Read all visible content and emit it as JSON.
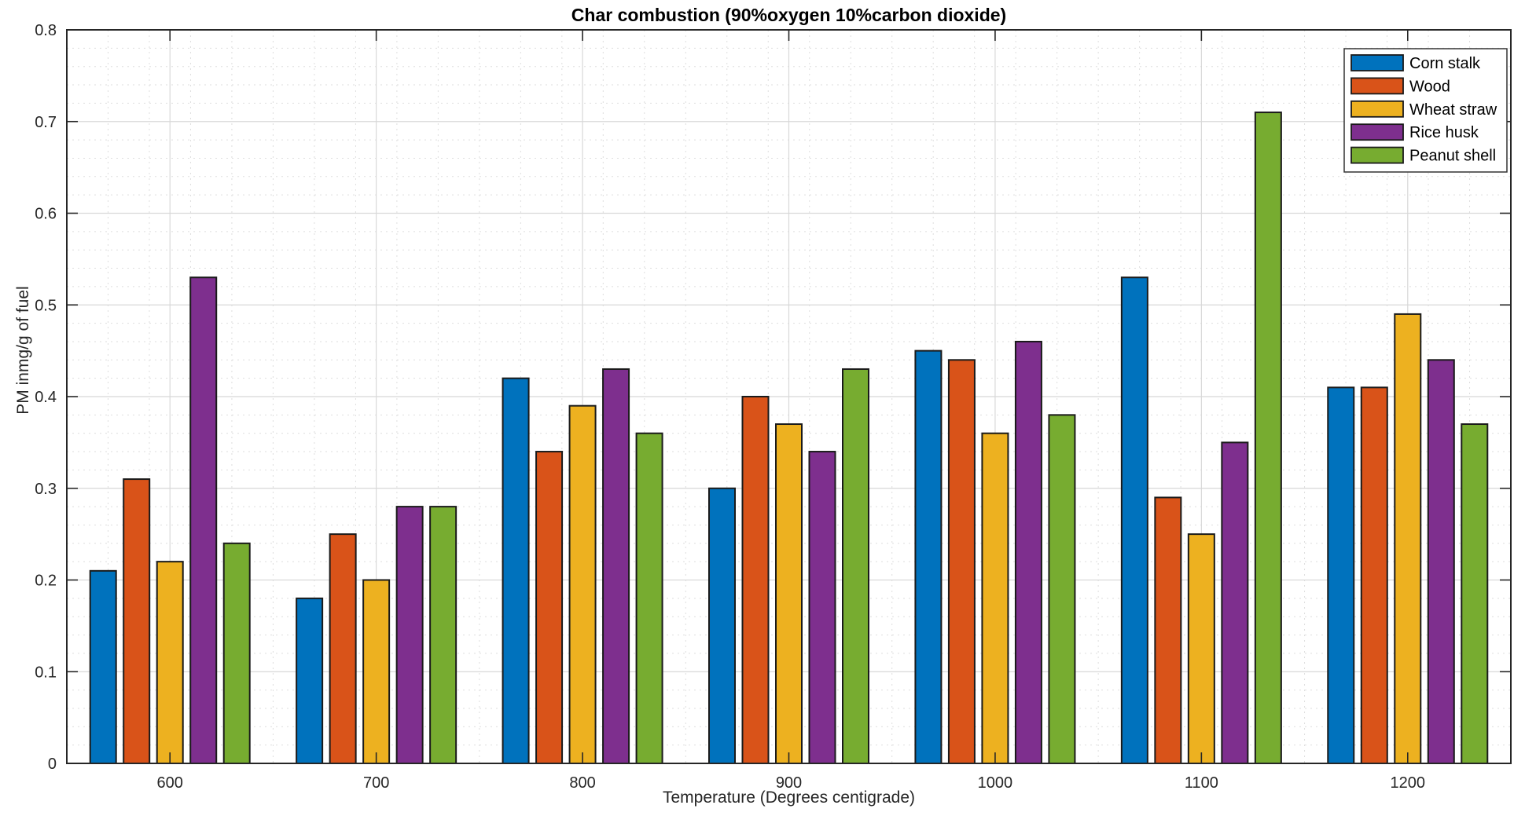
{
  "figure": {
    "background": "#ffffff"
  },
  "chart_data": {
    "type": "bar",
    "title": "Char combustion (90%oxygen 10%carbon dioxide)",
    "xlabel": "Temperature (Degrees centigrade)",
    "ylabel": "PM inmg/g of fuel",
    "categories": [
      "600",
      "700",
      "800",
      "900",
      "1000",
      "1100",
      "1200"
    ],
    "series": [
      {
        "name": "Corn stalk",
        "color": "#0072BD",
        "values": [
          0.21,
          0.18,
          0.42,
          0.3,
          0.45,
          0.53,
          0.41
        ]
      },
      {
        "name": "Wood",
        "color": "#D95319",
        "values": [
          0.31,
          0.25,
          0.34,
          0.4,
          0.44,
          0.29,
          0.41
        ]
      },
      {
        "name": "Wheat straw",
        "color": "#EDB120",
        "values": [
          0.22,
          0.2,
          0.39,
          0.37,
          0.36,
          0.25,
          0.49
        ]
      },
      {
        "name": "Rice husk",
        "color": "#7E2F8E",
        "values": [
          0.53,
          0.28,
          0.43,
          0.34,
          0.46,
          0.35,
          0.44
        ]
      },
      {
        "name": "Peanut shell",
        "color": "#77AC30",
        "values": [
          0.24,
          0.28,
          0.36,
          0.43,
          0.38,
          0.71,
          0.37
        ]
      }
    ],
    "ylim": [
      0,
      0.8
    ],
    "ytick_step": 0.1,
    "y_minor_step": 0.02,
    "grid": {
      "major": true,
      "minor": true
    },
    "legend_position": "top-right",
    "axis_color": "#262626",
    "grid_major_color": "#d8d8d8",
    "grid_minor_color": "#dedede",
    "bar_edge_color": "#1a1a1a"
  }
}
